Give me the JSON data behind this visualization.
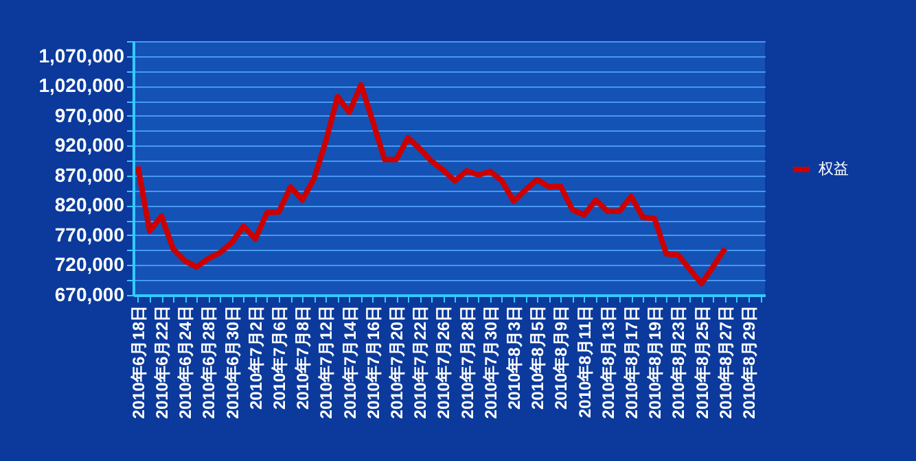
{
  "chart_data": {
    "type": "line",
    "categories": [
      "2010年6月18日",
      null,
      "2010年6月22日",
      null,
      "2010年6月24日",
      null,
      "2010年6月28日",
      null,
      "2010年6月30日",
      null,
      "2010年7月2日",
      null,
      "2010年7月6日",
      null,
      "2010年7月8日",
      null,
      "2010年7月12日",
      null,
      "2010年7月14日",
      null,
      "2010年7月16日",
      null,
      "2010年7月20日",
      null,
      "2010年7月22日",
      null,
      "2010年7月26日",
      null,
      "2010年7月28日",
      null,
      "2010年7月30日",
      null,
      "2010年8月3日",
      null,
      "2010年8月5日",
      null,
      "2010年8月9日",
      null,
      "2010年8月11日",
      null,
      "2010年8月13日",
      null,
      "2010年8月17日",
      null,
      "2010年8月19日",
      null,
      "2010年8月23日",
      null,
      "2010年8月25日",
      null,
      "2010年8月27日",
      null,
      "2010年8月29日",
      null
    ],
    "series": [
      {
        "name": "权益",
        "color": "#cc0000",
        "values": [
          885000,
          777000,
          802000,
          747000,
          727000,
          717000,
          731000,
          741000,
          758000,
          785000,
          764000,
          808000,
          809000,
          851000,
          829000,
          865000,
          927000,
          1002000,
          976000,
          1022000,
          961000,
          897000,
          897000,
          933000,
          915000,
          894000,
          879000,
          861000,
          878000,
          871000,
          877000,
          861000,
          827000,
          846000,
          863000,
          851000,
          852000,
          813000,
          804000,
          829000,
          810000,
          810000,
          835000,
          800000,
          798000,
          739000,
          737000,
          713000,
          689000,
          718000,
          748000,
          null,
          null,
          null
        ]
      }
    ],
    "ylim": [
      670000,
      1095000
    ],
    "yticks": [
      {
        "value": 670000,
        "label": "670,000"
      },
      {
        "value": 695000,
        "label": null
      },
      {
        "value": 720000,
        "label": "720,000"
      },
      {
        "value": 745000,
        "label": null
      },
      {
        "value": 770000,
        "label": "770,000"
      },
      {
        "value": 795000,
        "label": null
      },
      {
        "value": 820000,
        "label": "820,000"
      },
      {
        "value": 845000,
        "label": null
      },
      {
        "value": 870000,
        "label": "870,000"
      },
      {
        "value": 895000,
        "label": null
      },
      {
        "value": 920000,
        "label": "920,000"
      },
      {
        "value": 945000,
        "label": null
      },
      {
        "value": 970000,
        "label": "970,000"
      },
      {
        "value": 995000,
        "label": null
      },
      {
        "value": 1020000,
        "label": "1,020,000"
      },
      {
        "value": 1045000,
        "label": null
      },
      {
        "value": 1070000,
        "label": "1,070,000"
      },
      {
        "value": 1095000,
        "label": null
      }
    ],
    "grid": "y",
    "legend": "right",
    "marker": "none",
    "line_style": "solid"
  }
}
